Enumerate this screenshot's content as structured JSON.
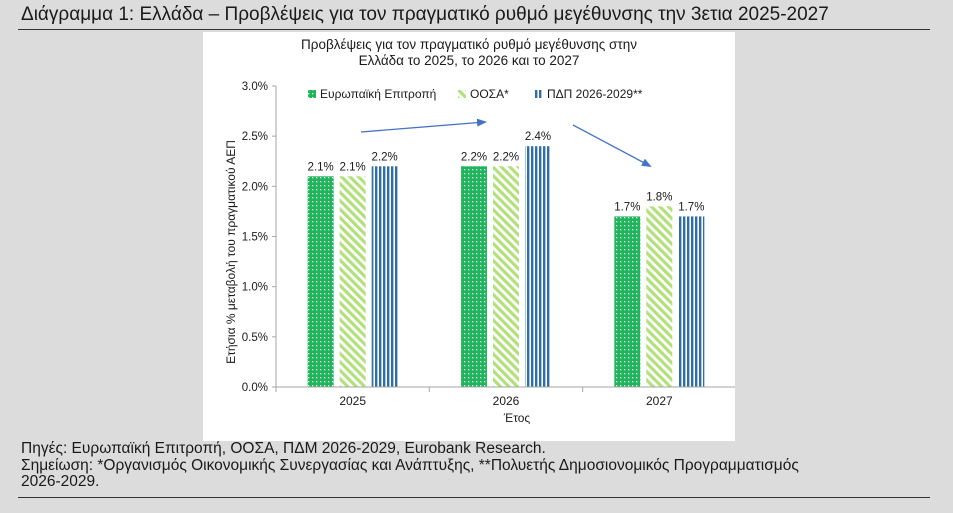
{
  "figure_title": "Διάγραμμα 1: Ελλάδα – Προβλέψεις για τον πραγματικό ρυθμό μεγέθυνσης την 3ετια 2025-2027",
  "notes": {
    "sources": "Πηγές: Ευρωπαϊκή Επιτροπή, ΟΟΣΑ, ΠΔΜ 2026-2029, Eurobank Research.",
    "note_line1": "Σημείωση: *Οργανισμός Οικονομικής Συνεργασίας και Ανάπτυξης, **Πολυετής Δημοσιονομικός Προγραμματισμός",
    "note_line2": "2026-2029."
  },
  "colors": {
    "eu": "#1fb55b",
    "oecd": "#b2e07a",
    "pdp": "#2f6fa5",
    "arrow": "#4472c4",
    "axis": "#a6a6a6"
  },
  "chart_data": {
    "type": "bar",
    "title_line1": "Προβλέψεις για τον πραγματικό ρυθμό μεγέθυνσης στην",
    "title_line2": "Ελλάδα το 2025, το 2026 και το 2027",
    "categories": [
      "2025",
      "2026",
      "2027"
    ],
    "series": [
      {
        "name": "Ευρωπαϊκή Επιτροπή",
        "values": [
          2.1,
          2.2,
          1.7
        ],
        "labels": [
          "2.1%",
          "2.2%",
          "1.7%"
        ],
        "pattern": "dotted",
        "color": "#1fb55b"
      },
      {
        "name": "ΟΟΣΑ*",
        "values": [
          2.1,
          2.2,
          1.8
        ],
        "labels": [
          "2.1%",
          "2.2%",
          "1.8%"
        ],
        "pattern": "diagonal",
        "color": "#b2e07a"
      },
      {
        "name": "ΠΔΠ 2026-2029**",
        "values": [
          2.2,
          2.4,
          1.7
        ],
        "labels": [
          "2.2%",
          "2.4%",
          "1.7%"
        ],
        "pattern": "vertical",
        "color": "#2f6fa5"
      }
    ],
    "xlabel": "Έτος",
    "ylabel": "Ετήσια % μεταβολή του πραγματικού ΑΕΠ",
    "ylim": [
      0,
      3.0
    ],
    "yticks": [
      0,
      0.5,
      1.0,
      1.5,
      2.0,
      2.5,
      3.0
    ],
    "ytick_labels": [
      "0.0%",
      "0.5%",
      "1.0%",
      "1.5%",
      "2.0%",
      "2.5%",
      "3.0%"
    ],
    "legend_position": "top",
    "grid": false,
    "annotations": "trend arrows: rising from 2025 to 2026, falling from 2026 to 2027"
  }
}
